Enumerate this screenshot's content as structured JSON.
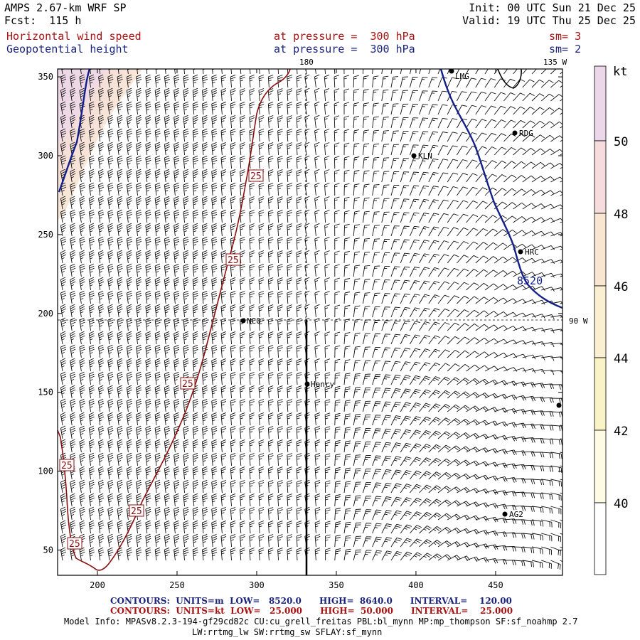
{
  "header": {
    "model": "AMPS 2.67-km WRF SP",
    "forecast": "Fcst:  115 h",
    "init": "Init: 00 UTC Sun 21 Dec 25",
    "valid": "Valid: 19 UTC Thu 25 Dec 25",
    "field1_name": "Horizontal wind speed",
    "field1_level": "at pressure =  300 hPa",
    "field1_smooth": "sm= 3",
    "field2_name": "Geopotential height",
    "field2_level": "at pressure =  300 hPa",
    "field2_smooth": "sm= 2"
  },
  "map": {
    "meridian_labels": [
      "180",
      "135 W",
      "90 W"
    ],
    "x_ticks": [
      "200",
      "250",
      "300",
      "350",
      "400",
      "450"
    ],
    "y_ticks": [
      "350",
      "300",
      "250",
      "200",
      "150",
      "100",
      "50"
    ],
    "stations": [
      {
        "label": "LMG"
      },
      {
        "label": "RDG"
      },
      {
        "label": "KLN"
      },
      {
        "label": "HRC"
      },
      {
        "label": "NCO"
      },
      {
        "label": "Henry"
      },
      {
        "label": "AG2"
      },
      {
        "label": ""
      }
    ],
    "height_contour_label": "8520",
    "speed_contour_labels": [
      "25",
      "25",
      "25",
      "25",
      "25",
      "25"
    ]
  },
  "colorbar": {
    "unit": "kt",
    "labels": [
      "50",
      "48",
      "46",
      "44",
      "42",
      "40"
    ],
    "colors": [
      "#ecd6ea",
      "#f6dcdc",
      "#f8e6d2",
      "#faefd0",
      "#fbf3c8",
      "#fdfbe4",
      "#ffffff"
    ]
  },
  "footer": {
    "contour1": "CONTOURS:  UNITS=m  LOW=   8520.0      HIGH=  8640.0      INTERVAL=    120.00",
    "contour2": "CONTOURS:  UNITS=kt  LOW=   25.000      HIGH=  50.000      INTERVAL=    25.000",
    "info1": "Model Info: MPASv8.2.3-194-gf29cd82c CU:cu_grell_freitas PBL:bl_mynn MP:mp_thompson SF:sf_noahmp 2.7",
    "info2": "LW:rrtmg_lw SW:rrtmg_sw SFLAY:sf_mynn"
  }
}
